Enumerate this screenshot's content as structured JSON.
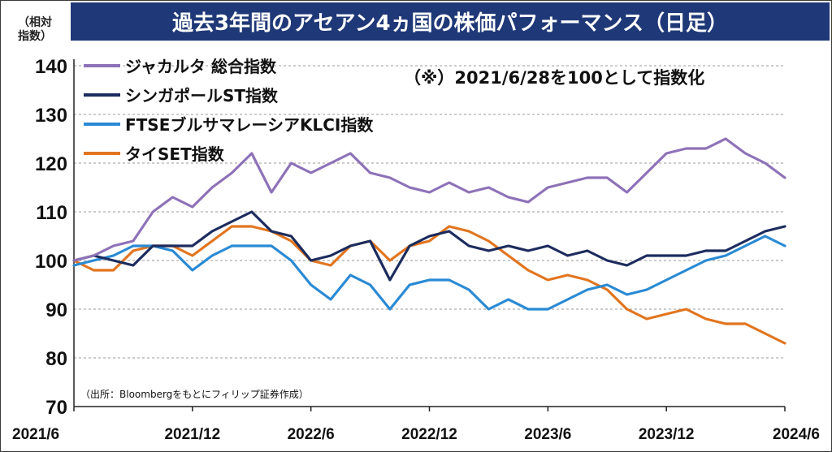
{
  "chart_data": {
    "type": "line",
    "title": "過去3年間のアセアン4ヵ国の株価パフォーマンス（日足）",
    "ylabel": "（相対指数）",
    "note": "（※）2021/6/28を100として指数化",
    "source": "（出所：Bloombergをもとにフィリップ証券作成）",
    "ylim": [
      70,
      140
    ],
    "yticks": [
      "140",
      "130",
      "120",
      "110",
      "100",
      "90",
      "80",
      "70"
    ],
    "xticks": [
      "2021/6",
      "2021/12",
      "2022/6",
      "2022/12",
      "2023/6",
      "2023/12",
      "2024/6"
    ],
    "x_tick_months": [
      0,
      6,
      12,
      18,
      24,
      30,
      36
    ],
    "grid": "horizontal dashed",
    "legend_position": "top-left",
    "x": [
      0,
      1,
      2,
      3,
      4,
      5,
      6,
      7,
      8,
      9,
      10,
      11,
      12,
      13,
      14,
      15,
      16,
      17,
      18,
      19,
      20,
      21,
      22,
      23,
      24,
      25,
      26,
      27,
      28,
      29,
      30,
      31,
      32,
      33,
      34,
      35,
      36
    ],
    "x_unit": "months since 2021/6",
    "series": [
      {
        "name": "ジャカルタ 総合指数",
        "color": "#8e72b8",
        "values": [
          100,
          101,
          103,
          104,
          110,
          113,
          111,
          115,
          118,
          122,
          114,
          120,
          118,
          120,
          122,
          118,
          117,
          115,
          114,
          116,
          114,
          115,
          113,
          112,
          115,
          116,
          117,
          117,
          114,
          118,
          122,
          123,
          123,
          125,
          122,
          120,
          117
        ]
      },
      {
        "name": "シンガポールST指数",
        "color": "#1c2c5e",
        "values": [
          100,
          101,
          100,
          99,
          103,
          103,
          103,
          106,
          108,
          110,
          106,
          105,
          100,
          101,
          103,
          104,
          96,
          103,
          105,
          106,
          103,
          102,
          103,
          102,
          103,
          101,
          102,
          100,
          99,
          101,
          101,
          101,
          102,
          102,
          104,
          106,
          107
        ]
      },
      {
        "name": "FTSEブルサマレーシアKLCI指数",
        "color": "#2a8ad4",
        "values": [
          99,
          100,
          101,
          103,
          103,
          102,
          98,
          101,
          103,
          103,
          103,
          100,
          95,
          92,
          97,
          95,
          90,
          95,
          96,
          96,
          94,
          90,
          92,
          90,
          90,
          92,
          94,
          95,
          93,
          94,
          96,
          98,
          100,
          101,
          103,
          105,
          103
        ]
      },
      {
        "name": "タイSET指数",
        "color": "#e2751f",
        "values": [
          100,
          98,
          98,
          102,
          103,
          103,
          101,
          104,
          107,
          107,
          106,
          104,
          100,
          99,
          103,
          104,
          100,
          103,
          104,
          107,
          106,
          104,
          101,
          98,
          96,
          97,
          96,
          94,
          90,
          88,
          89,
          90,
          88,
          87,
          87,
          85,
          83
        ]
      }
    ]
  }
}
